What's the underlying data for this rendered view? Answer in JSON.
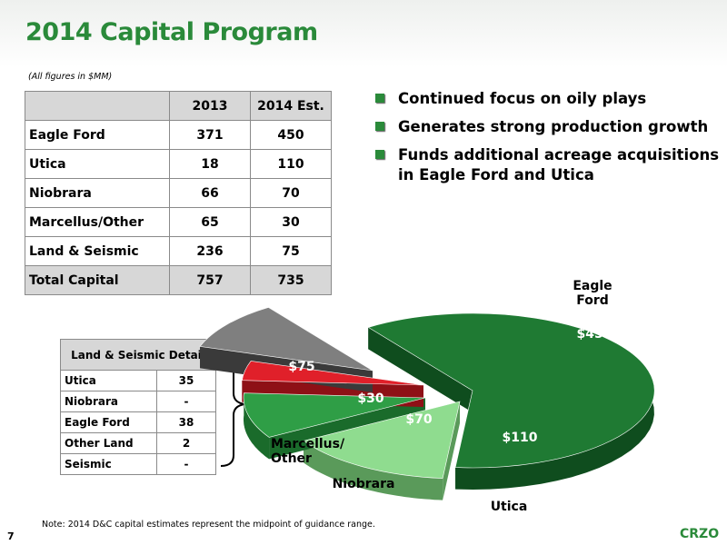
{
  "header": {
    "title": "2014 Capital Program",
    "units_note": "(All figures in $MM)"
  },
  "capital_table": {
    "columns": [
      "",
      "2013",
      "2014 Est."
    ],
    "rows": [
      [
        "Eagle Ford",
        "371",
        "450"
      ],
      [
        "Utica",
        "18",
        "110"
      ],
      [
        "Niobrara",
        "66",
        "70"
      ],
      [
        "Marcellus/Other",
        "65",
        "30"
      ],
      [
        "Land & Seismic",
        "236",
        "75"
      ]
    ],
    "total": [
      "Total Capital",
      "757",
      "735"
    ]
  },
  "bullets": [
    "Continued focus on oily plays",
    "Generates strong production growth",
    "Funds additional acreage acquisitions in Eagle Ford and Utica"
  ],
  "detail_table": {
    "title": "Land & Seismic Detail",
    "rows": [
      [
        "Utica",
        "35"
      ],
      [
        "Niobrara",
        "-"
      ],
      [
        "Eagle Ford",
        "38"
      ],
      [
        "Other Land",
        "2"
      ],
      [
        "Seismic",
        "-"
      ]
    ]
  },
  "chart_data": {
    "type": "pie",
    "subtype": "3d-exploded",
    "categories": [
      "Eagle Ford",
      "Utica",
      "Niobrara",
      "Marcellus/ Other",
      "Land & Seismic"
    ],
    "values": [
      450,
      110,
      70,
      30,
      75
    ],
    "data_labels": [
      "$450",
      "$110",
      "$70",
      "$30",
      "$75"
    ],
    "category_labels": [
      "Eagle Ford",
      "Utica",
      "Niobrara",
      "Marcellus/ Other"
    ],
    "colors": [
      "#1f7a33",
      "#8fdc8f",
      "#2f9e46",
      "#e0202a",
      "#7f7f7f"
    ],
    "side_colors": [
      "#0f4d1e",
      "#5a9a5a",
      "#1a6b2b",
      "#8e1016",
      "#3a3a3a"
    ]
  },
  "footer": {
    "note": "Note: 2014 D&C capital estimates represent the midpoint of guidance range.",
    "page_number": "7",
    "brand": "CRZO"
  },
  "colors": {
    "accent": "#2a8a3a",
    "table_header": "#d7d7d7"
  }
}
